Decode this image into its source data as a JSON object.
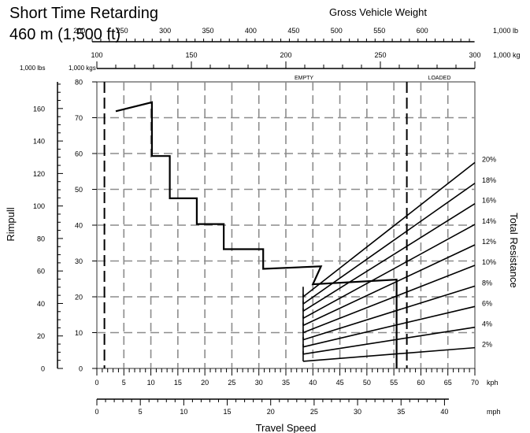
{
  "chart_data": {
    "type": "line",
    "title": "Short Time Retarding",
    "subtitle": "460 m (1,500 ft)",
    "xlabel": "Travel Speed",
    "ylabel": "Rimpull",
    "right_label": "Total Resistance",
    "x_units": "kph",
    "x_secondary_units": "mph",
    "y_units_left": "1,000 lbs",
    "y_units_right": "1,000 kgs",
    "gvw_label": "Gross Vehicle Weight",
    "gvw_lb_units": "1,000 lb",
    "gvw_kg_units": "1,000 kg",
    "empty_label": "EMPTY",
    "loaded_label": "LOADED",
    "xlim": [
      0,
      70
    ],
    "ylim": [
      0,
      80
    ],
    "ylim_lbs": [
      0,
      176.4
    ],
    "x_ticks": [
      0,
      5,
      10,
      15,
      20,
      25,
      30,
      35,
      40,
      45,
      50,
      55,
      60,
      65,
      70
    ],
    "x_mph_ticks": [
      0,
      5,
      10,
      15,
      20,
      25,
      30,
      35,
      40
    ],
    "y_kg_ticks": [
      0,
      10,
      20,
      30,
      40,
      50,
      60,
      70,
      80
    ],
    "y_lbs_ticks": [
      0,
      20,
      40,
      60,
      80,
      100,
      120,
      140,
      160
    ],
    "gvw_lb_ticks": [
      200,
      250,
      300,
      350,
      400,
      450,
      500,
      550,
      600
    ],
    "gvw_kg_ticks": [
      100,
      150,
      200,
      250,
      300
    ],
    "gvw_kg_range": [
      100,
      300
    ],
    "empty_weight_kg": 104,
    "loaded_weight_kg": 264,
    "grid": true,
    "retarding_curve": {
      "x": [
        3.5,
        10.2,
        10.2,
        13.5,
        13.5,
        18.5,
        18.5,
        23.5,
        23.5,
        30.8,
        30.8,
        41.5,
        40,
        55.5,
        55.5
      ],
      "y": [
        71.8,
        74.3,
        59.3,
        59.3,
        47.5,
        47.5,
        40.3,
        40.3,
        33.3,
        33.3,
        27.8,
        28.5,
        23.5,
        24.8,
        0
      ]
    },
    "resistance_lines": [
      {
        "label": "2%",
        "x0": 38.2,
        "y0": 2.0,
        "x1": 70,
        "y1": 5.8
      },
      {
        "label": "4%",
        "x0": 38.2,
        "y0": 4.0,
        "x1": 70,
        "y1": 11.5
      },
      {
        "label": "6%",
        "x0": 38.2,
        "y0": 6.0,
        "x1": 70,
        "y1": 17.3
      },
      {
        "label": "8%",
        "x0": 38.2,
        "y0": 8.0,
        "x1": 70,
        "y1": 23.0
      },
      {
        "label": "10%",
        "x0": 38.2,
        "y0": 10.0,
        "x1": 70,
        "y1": 28.8
      },
      {
        "label": "12%",
        "x0": 38.2,
        "y0": 12.0,
        "x1": 70,
        "y1": 34.5
      },
      {
        "label": "14%",
        "x0": 38.2,
        "y0": 14.0,
        "x1": 70,
        "y1": 40.2
      },
      {
        "label": "16%",
        "x0": 38.2,
        "y0": 16.0,
        "x1": 70,
        "y1": 46.0
      },
      {
        "label": "18%",
        "x0": 38.2,
        "y0": 18.0,
        "x1": 70,
        "y1": 51.7
      },
      {
        "label": "20%",
        "x0": 38.2,
        "y0": 20.0,
        "x1": 70,
        "y1": 57.5
      }
    ]
  }
}
